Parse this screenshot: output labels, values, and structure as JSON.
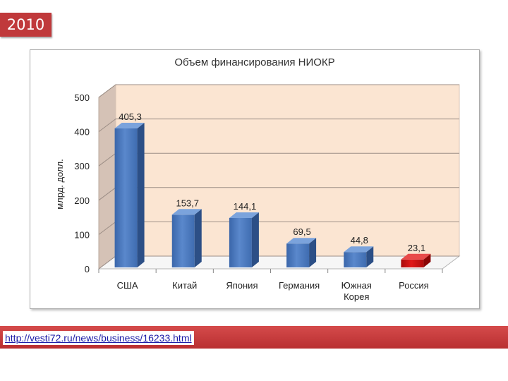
{
  "badge": {
    "year": "2010"
  },
  "source": {
    "url": "http://vesti72.ru/news/business/16233.html"
  },
  "chart_data": {
    "type": "bar",
    "title": "Объем финансирования НИОКР",
    "ylabel": "млрд. долл.",
    "xlabel": "",
    "ylim": [
      0,
      500
    ],
    "yticks": [
      0,
      100,
      200,
      300,
      400,
      500
    ],
    "grid": true,
    "categories": [
      [
        "США"
      ],
      [
        "Китай"
      ],
      [
        "Япония"
      ],
      [
        "Германия"
      ],
      [
        "Южная",
        "Корея"
      ],
      [
        "Россия"
      ]
    ],
    "values": [
      405.3,
      153.7,
      144.1,
      69.5,
      44.8,
      23.1
    ],
    "data_labels": [
      "405,3",
      "153,7",
      "144,1",
      "69,5",
      "44,8",
      "23,1"
    ],
    "colors": {
      "bar": "#4a78be",
      "highlight": "#cc1010",
      "wall": "#fbe5d2"
    },
    "highlight_index": 5
  }
}
